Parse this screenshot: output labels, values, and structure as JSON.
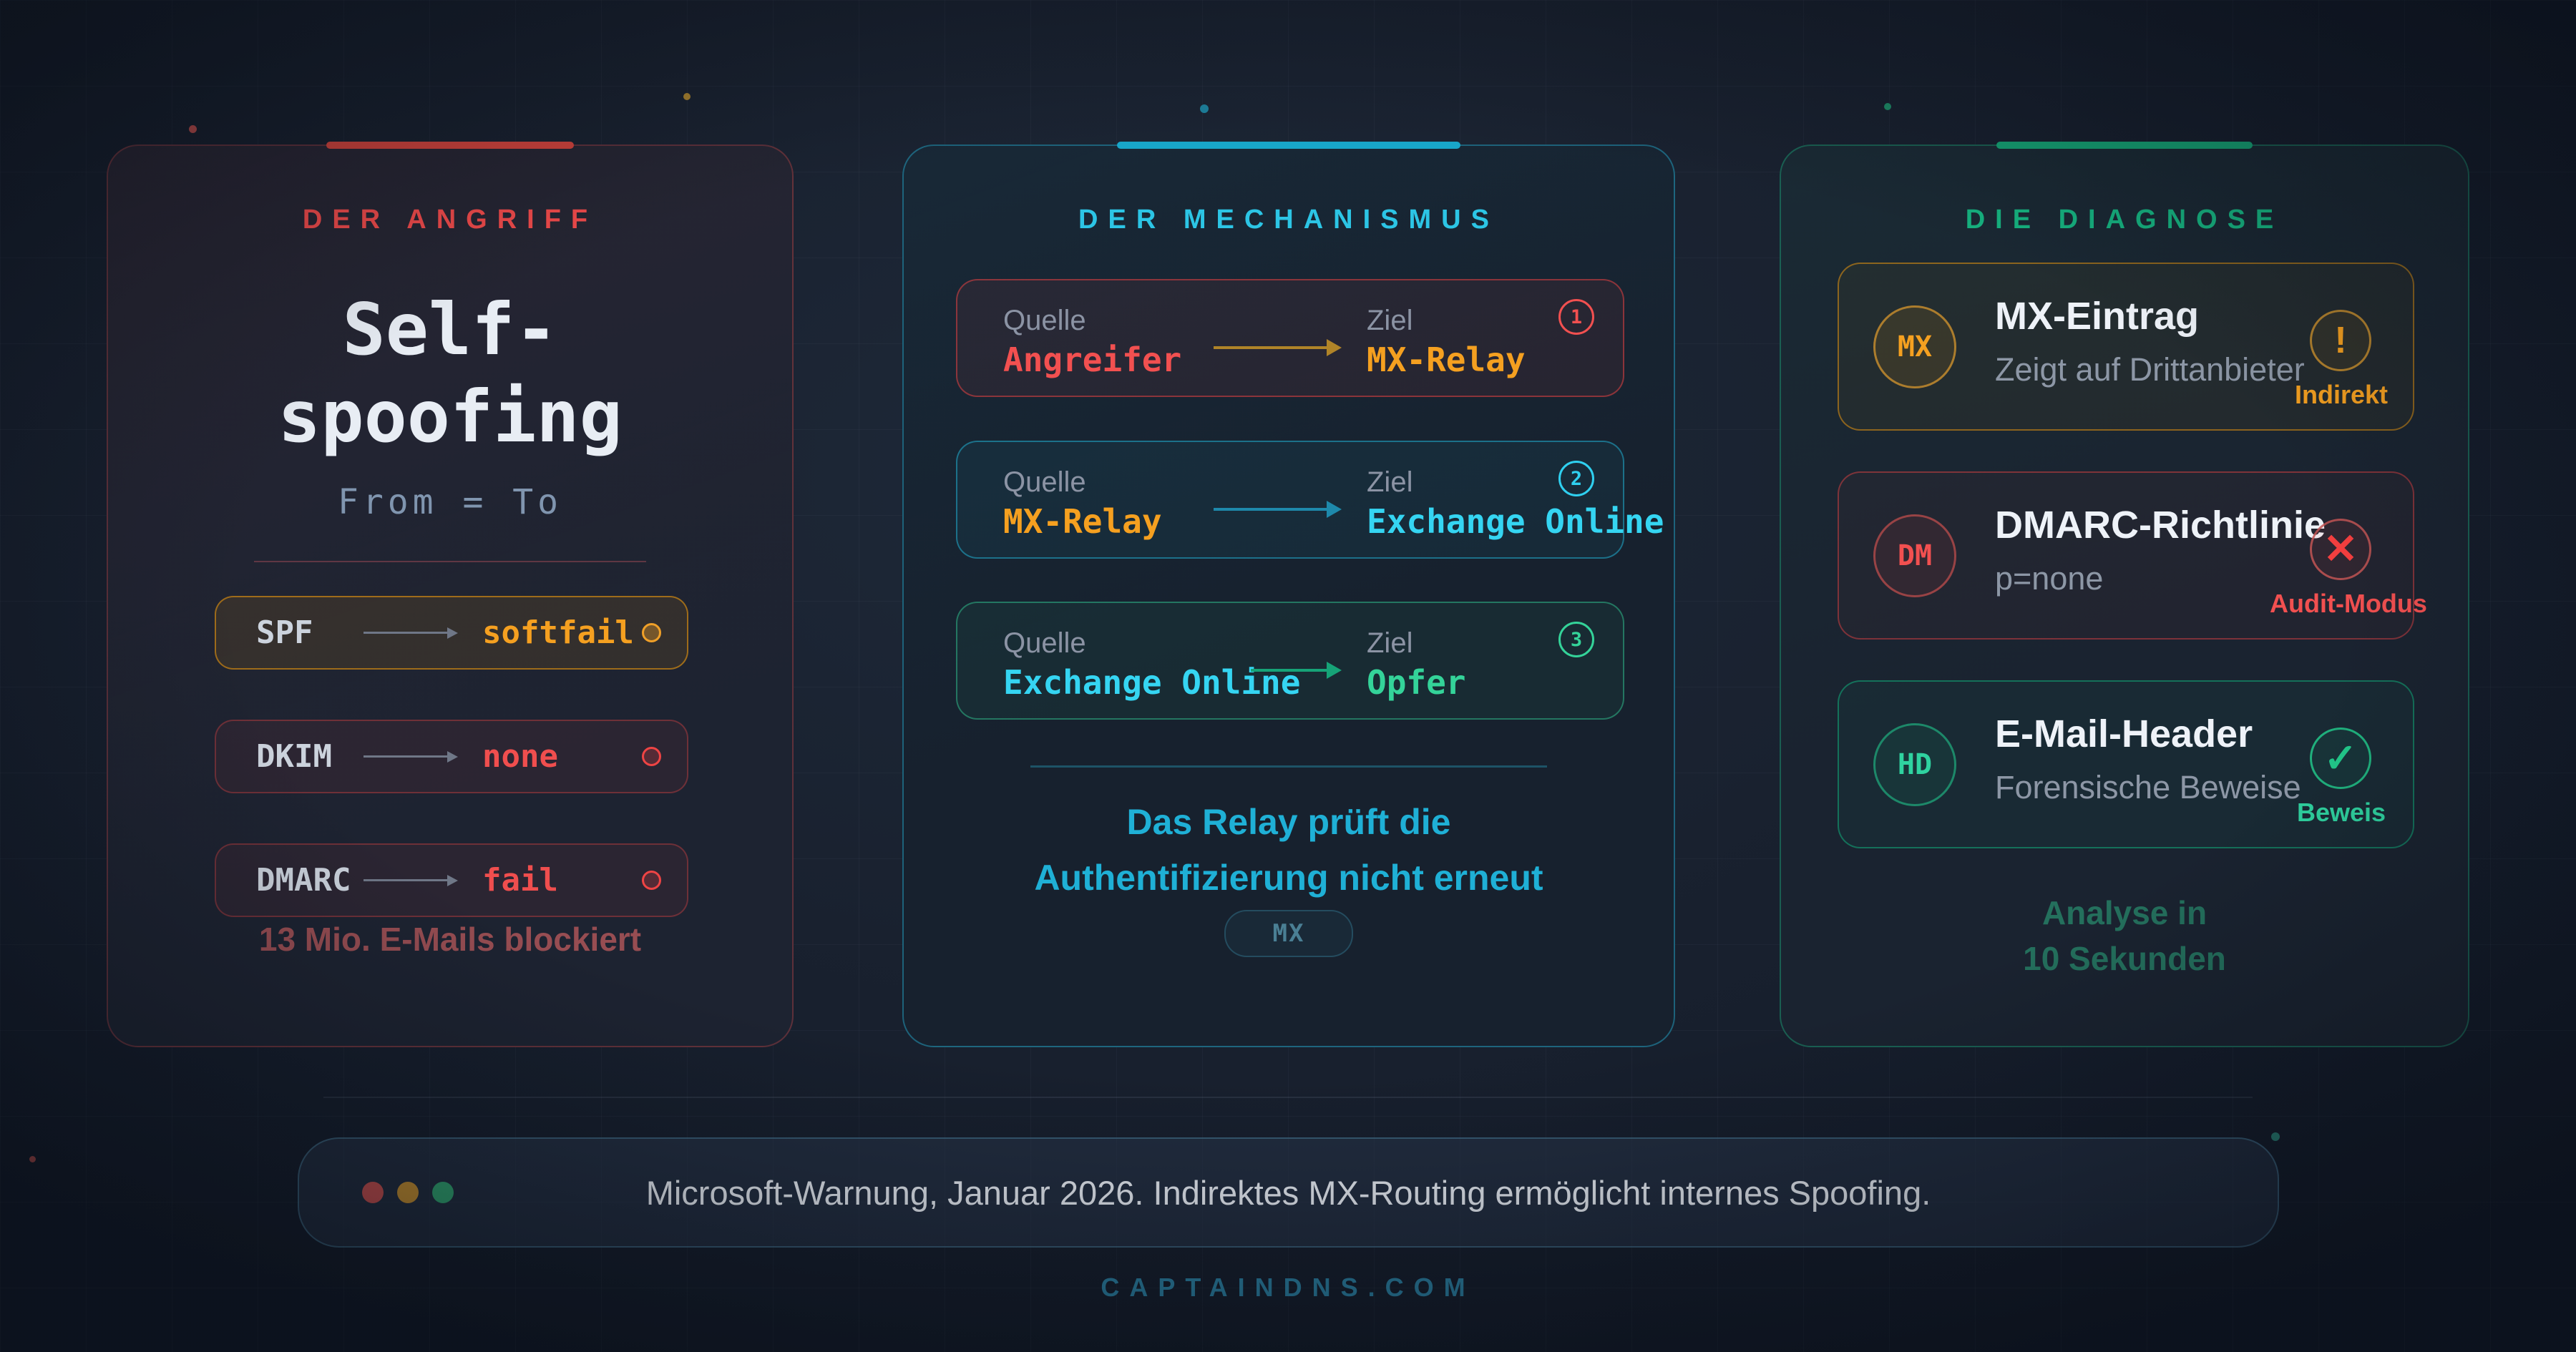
{
  "attack": {
    "header": "DER ANGRIFF",
    "title_line1": "Self-",
    "title_line2": "spoofing",
    "subtitle": "From = To",
    "rows": [
      {
        "label": "SPF",
        "value": "softfail",
        "status": "warn"
      },
      {
        "label": "DKIM",
        "value": "none",
        "status": "fail"
      },
      {
        "label": "DMARC",
        "value": "fail",
        "status": "fail"
      }
    ],
    "note": "13 Mio. E-Mails blockiert",
    "accent_color": "#d0433c"
  },
  "mechanism": {
    "header": "DER MECHANISMUS",
    "steps": [
      {
        "num": "1",
        "source_label": "Quelle",
        "source": "Angreifer",
        "target_label": "Ziel",
        "target": "MX-Relay"
      },
      {
        "num": "2",
        "source_label": "Quelle",
        "source": "MX-Relay",
        "target_label": "Ziel",
        "target": "Exchange Online"
      },
      {
        "num": "3",
        "source_label": "Quelle",
        "source": "Exchange Online",
        "target_label": "Ziel",
        "target": "Opfer"
      }
    ],
    "note_line1": "Das Relay prüft die",
    "note_line2": "Authentifizierung nicht erneut",
    "badge": "MX",
    "accent_color": "#18a6c9"
  },
  "diagnosis": {
    "header": "DIE DIAGNOSE",
    "items": [
      {
        "badge": "MX",
        "title": "MX-Eintrag",
        "subtitle": "Zeigt auf Drittanbieter",
        "icon": "!",
        "tag": "Indirekt"
      },
      {
        "badge": "DM",
        "title": "DMARC-Richtlinie",
        "subtitle": "p=none",
        "icon": "✕",
        "tag": "Audit-Modus"
      },
      {
        "badge": "HD",
        "title": "E-Mail-Header",
        "subtitle": "Forensische Beweise",
        "icon": "✓",
        "tag": "Beweis"
      }
    ],
    "note_line1": "Analyse in",
    "note_line2": "10 Sekunden",
    "accent_color": "#15a173"
  },
  "footer": {
    "message": "Microsoft-Warnung, Januar 2026. Indirektes MX-Routing ermöglicht internes Spoofing.",
    "domain": "CAPTAINDNS.COM",
    "dot_colors": [
      "#bf4d4d",
      "#bd8a2f",
      "#2f9e6d"
    ]
  },
  "colors": {
    "background": "#18202f",
    "red": "#ef4444",
    "amber": "#f5a020",
    "cyan": "#35d5f2",
    "green": "#34d399",
    "domain_teal": "#2b80a2"
  }
}
